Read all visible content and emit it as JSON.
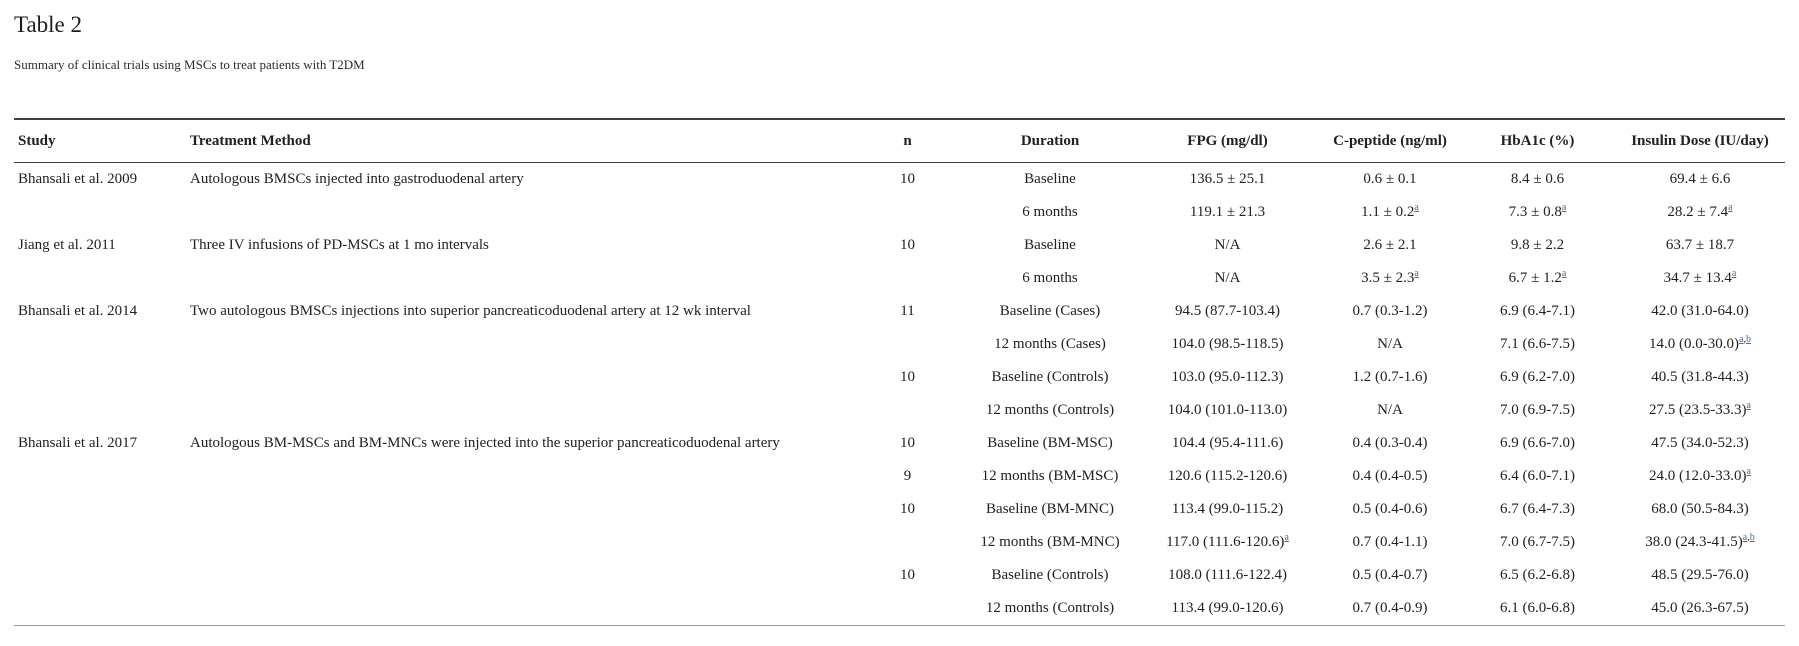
{
  "page": {
    "title": "Table 2",
    "subtitle": "Summary of clinical trials using MSCs to treat patients with T2DM"
  },
  "footnote_link_color": "#3c6d9c",
  "table": {
    "columns": [
      "Study",
      "Treatment Method",
      "n",
      "Duration",
      "FPG (mg/dl)",
      "C-peptide (ng/ml)",
      "HbA1c (%)",
      "Insulin Dose (IU/day)"
    ],
    "groups": [
      {
        "study": "Bhansali et al. 2009",
        "treatment": "Autologous BMSCs injected into gastroduodenal artery",
        "rows": [
          {
            "n": "10",
            "duration": "Baseline",
            "fpg": {
              "v": "136.5 ± 25.1"
            },
            "cpeptide": {
              "v": "0.6 ± 0.1"
            },
            "hba1c": {
              "v": "8.4 ± 0.6"
            },
            "insulin": {
              "v": "69.4 ± 6.6"
            }
          },
          {
            "n": "",
            "duration": "6 months",
            "fpg": {
              "v": "119.1 ± 21.3"
            },
            "cpeptide": {
              "v": "1.1 ± 0.2",
              "s": [
                "a"
              ]
            },
            "hba1c": {
              "v": "7.3 ± 0.8",
              "s": [
                "a"
              ]
            },
            "insulin": {
              "v": "28.2 ± 7.4",
              "s": [
                "a"
              ]
            }
          }
        ]
      },
      {
        "study": "Jiang et al. 2011",
        "treatment": "Three IV infusions of PD-MSCs at 1 mo intervals",
        "rows": [
          {
            "n": "10",
            "duration": "Baseline",
            "fpg": {
              "v": "N/A"
            },
            "cpeptide": {
              "v": "2.6 ± 2.1"
            },
            "hba1c": {
              "v": "9.8 ± 2.2"
            },
            "insulin": {
              "v": "63.7 ± 18.7"
            }
          },
          {
            "n": "",
            "duration": "6 months",
            "fpg": {
              "v": "N/A"
            },
            "cpeptide": {
              "v": "3.5 ± 2.3",
              "s": [
                "a"
              ]
            },
            "hba1c": {
              "v": "6.7 ± 1.2",
              "s": [
                "a"
              ]
            },
            "insulin": {
              "v": "34.7 ± 13.4",
              "s": [
                "a"
              ]
            }
          }
        ]
      },
      {
        "study": "Bhansali et al. 2014",
        "treatment": "Two autologous BMSCs injections into superior pancreaticoduodenal artery at 12 wk interval",
        "rows": [
          {
            "n": "11",
            "duration": "Baseline (Cases)",
            "fpg": {
              "v": "94.5 (87.7-103.4)"
            },
            "cpeptide": {
              "v": "0.7 (0.3-1.2)"
            },
            "hba1c": {
              "v": "6.9 (6.4-7.1)"
            },
            "insulin": {
              "v": "42.0 (31.0-64.0)"
            }
          },
          {
            "n": "",
            "duration": "12 months (Cases)",
            "fpg": {
              "v": "104.0 (98.5-118.5)"
            },
            "cpeptide": {
              "v": "N/A"
            },
            "hba1c": {
              "v": "7.1 (6.6-7.5)"
            },
            "insulin": {
              "v": "14.0 (0.0-30.0)",
              "s": [
                "a",
                "b"
              ]
            }
          },
          {
            "n": "10",
            "duration": "Baseline (Controls)",
            "fpg": {
              "v": "103.0 (95.0-112.3)"
            },
            "cpeptide": {
              "v": "1.2 (0.7-1.6)"
            },
            "hba1c": {
              "v": "6.9 (6.2-7.0)"
            },
            "insulin": {
              "v": "40.5 (31.8-44.3)"
            }
          },
          {
            "n": "",
            "duration": "12 months (Controls)",
            "fpg": {
              "v": "104.0 (101.0-113.0)"
            },
            "cpeptide": {
              "v": "N/A"
            },
            "hba1c": {
              "v": "7.0 (6.9-7.5)"
            },
            "insulin": {
              "v": "27.5 (23.5-33.3)",
              "s": [
                "a"
              ]
            }
          }
        ]
      },
      {
        "study": "Bhansali et al. 2017",
        "treatment": "Autologous BM-MSCs and BM-MNCs were injected into the superior pancreaticoduodenal artery",
        "rows": [
          {
            "n": "10",
            "duration": "Baseline (BM-MSC)",
            "fpg": {
              "v": "104.4 (95.4-111.6)"
            },
            "cpeptide": {
              "v": "0.4 (0.3-0.4)"
            },
            "hba1c": {
              "v": "6.9 (6.6-7.0)"
            },
            "insulin": {
              "v": "47.5 (34.0-52.3)"
            }
          },
          {
            "n": "9",
            "duration": "12 months (BM-MSC)",
            "fpg": {
              "v": "120.6 (115.2-120.6)"
            },
            "cpeptide": {
              "v": "0.4 (0.4-0.5)"
            },
            "hba1c": {
              "v": "6.4 (6.0-7.1)"
            },
            "insulin": {
              "v": "24.0 (12.0-33.0)",
              "s": [
                "a"
              ]
            }
          },
          {
            "n": "10",
            "duration": "Baseline (BM-MNC)",
            "fpg": {
              "v": "113.4 (99.0-115.2)"
            },
            "cpeptide": {
              "v": "0.5 (0.4-0.6)"
            },
            "hba1c": {
              "v": "6.7 (6.4-7.3)"
            },
            "insulin": {
              "v": "68.0 (50.5-84.3)"
            }
          },
          {
            "n": "",
            "duration": "12 months (BM-MNC)",
            "fpg": {
              "v": "117.0 (111.6-120.6)",
              "s": [
                "a"
              ]
            },
            "cpeptide": {
              "v": "0.7 (0.4-1.1)"
            },
            "hba1c": {
              "v": "7.0 (6.7-7.5)"
            },
            "insulin": {
              "v": "38.0 (24.3-41.5)",
              "s": [
                "a",
                "b"
              ]
            }
          },
          {
            "n": "10",
            "duration": "Baseline (Controls)",
            "fpg": {
              "v": "108.0 (111.6-122.4)"
            },
            "cpeptide": {
              "v": "0.5 (0.4-0.7)"
            },
            "hba1c": {
              "v": "6.5 (6.2-6.8)"
            },
            "insulin": {
              "v": "48.5 (29.5-76.0)"
            }
          },
          {
            "n": "",
            "duration": "12 months (Controls)",
            "fpg": {
              "v": "113.4 (99.0-120.6)"
            },
            "cpeptide": {
              "v": "0.7 (0.4-0.9)"
            },
            "hba1c": {
              "v": "6.1 (6.0-6.8)"
            },
            "insulin": {
              "v": "45.0 (26.3-67.5)"
            }
          }
        ]
      }
    ]
  }
}
